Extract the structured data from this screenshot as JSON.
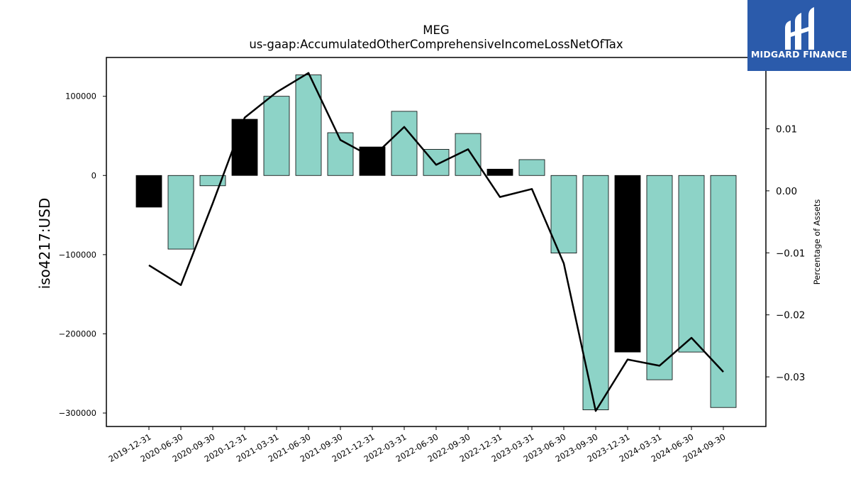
{
  "chart_data": {
    "type": "bar",
    "title": "MEG",
    "subtitle": "us-gaap:AccumulatedOtherComprehensiveIncomeLossNetOfTax",
    "ylabel": "iso4217:USD",
    "y2label": "Percentage of Assets",
    "categories": [
      "2019-12-31",
      "2020-06-30",
      "2020-09-30",
      "2020-12-31",
      "2021-03-31",
      "2021-06-30",
      "2021-09-30",
      "2021-12-31",
      "2022-03-31",
      "2022-06-30",
      "2022-09-30",
      "2022-12-31",
      "2023-03-31",
      "2023-06-30",
      "2023-09-30",
      "2023-12-31",
      "2024-03-31",
      "2024-06-30",
      "2024-09-30"
    ],
    "series": [
      {
        "type": "bar",
        "values": [
          -40000,
          -93000,
          -13000,
          71000,
          100000,
          127000,
          54000,
          36000,
          81000,
          33000,
          53000,
          8000,
          20000,
          -98000,
          -296000,
          -223000,
          -258000,
          -223000,
          -293000
        ],
        "highlight": [
          true,
          false,
          false,
          true,
          false,
          false,
          false,
          true,
          false,
          false,
          false,
          true,
          false,
          false,
          false,
          true,
          false,
          false,
          false
        ],
        "color": "#8dd3c7",
        "highlight_color": "#000000"
      },
      {
        "type": "line",
        "axis": "right",
        "values": [
          -0.012,
          -0.0152,
          -0.002,
          0.0118,
          0.0159,
          0.019,
          0.0082,
          0.0054,
          0.0103,
          0.0042,
          0.0067,
          -0.001,
          0.0003,
          -0.0117,
          -0.0355,
          -0.0272,
          -0.0282,
          -0.0237,
          -0.0292
        ],
        "color": "#000000"
      }
    ],
    "ylim": [
      -317000,
      149000
    ],
    "y2lim": [
      -0.038,
      0.0215
    ],
    "yticks": [
      100000,
      0,
      -100000,
      -200000,
      -300000
    ],
    "y2ticks": [
      0.01,
      0.0,
      -0.01,
      -0.02,
      -0.03
    ],
    "ytick_labels": [
      "100000",
      "0",
      "−100000",
      "−200000",
      "−300000"
    ],
    "y2tick_labels": [
      "0.01",
      "0.00",
      "−0.01",
      "−0.02",
      "−0.03"
    ],
    "grid": false,
    "legend": "none"
  },
  "logo": {
    "text": "MIDGARD FINANCE",
    "bg": "#2b5bab"
  }
}
